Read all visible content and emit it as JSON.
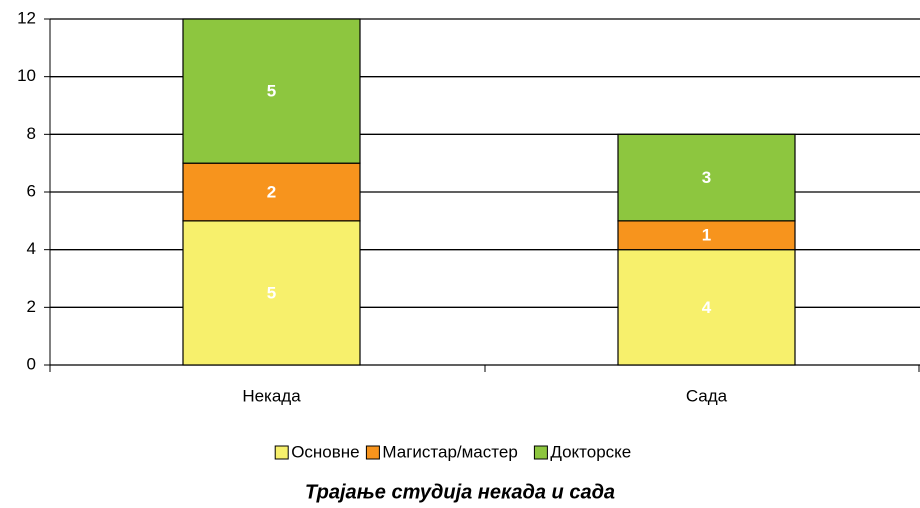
{
  "chart_data": {
    "type": "bar",
    "stacked": true,
    "title": "Трајање студија некада и сада",
    "categories": [
      "Некада",
      "Сада"
    ],
    "series": [
      {
        "name": "Основне",
        "color": "#f7f06c",
        "values": [
          5,
          4
        ]
      },
      {
        "name": "Магистар/мастер",
        "color": "#f7941d",
        "values": [
          2,
          1
        ]
      },
      {
        "name": "Докторске",
        "color": "#8dc63f",
        "values": [
          5,
          3
        ]
      }
    ],
    "ylim": [
      0,
      12
    ],
    "yticks": [
      0,
      2,
      4,
      6,
      8,
      10,
      12
    ],
    "grid": true,
    "legend": "bottom"
  }
}
